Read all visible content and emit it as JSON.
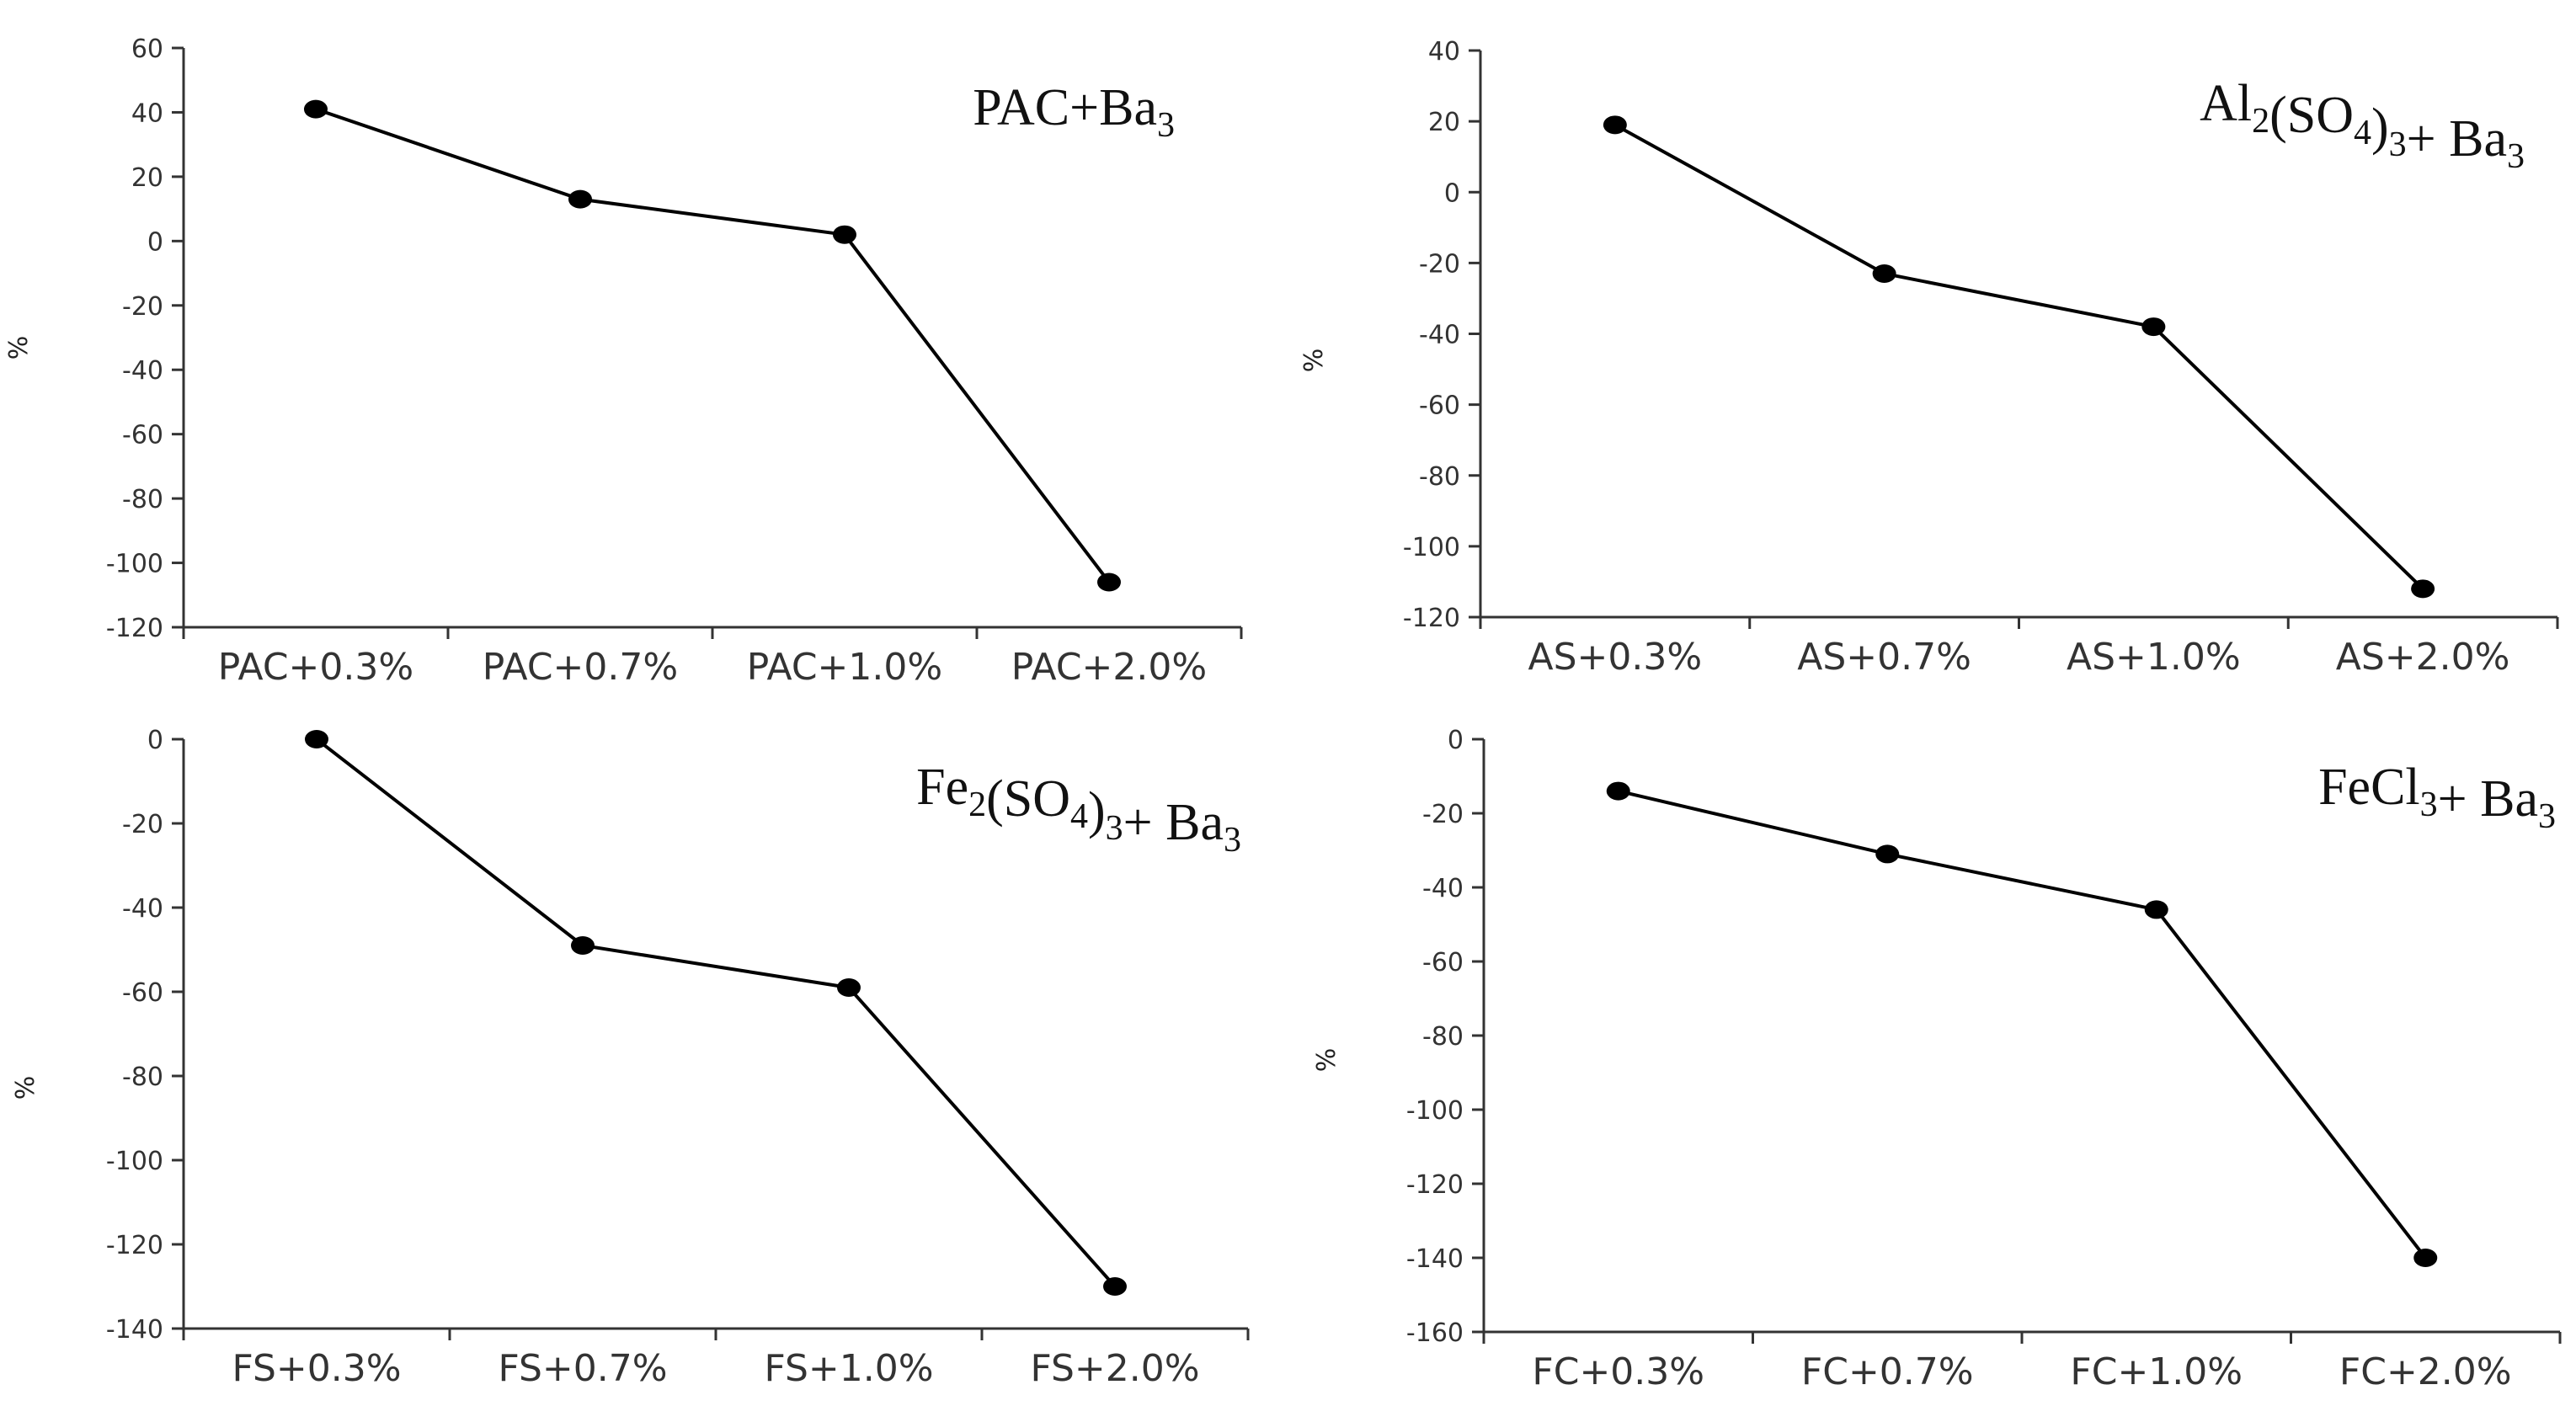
{
  "chart_data": [
    {
      "type": "line",
      "title": "PAC+Ba3",
      "ylabel": "%",
      "xlabel": "",
      "categories": [
        "PAC+0.3%",
        "PAC+0.7%",
        "PAC+1.0%",
        "PAC+2.0%"
      ],
      "values": [
        41,
        13,
        2,
        -106
      ],
      "ylim": [
        -120,
        60
      ],
      "yticks": [
        60,
        40,
        20,
        0,
        -20,
        -40,
        -60,
        -80,
        -100,
        -120
      ],
      "legend": "none",
      "grid": false
    },
    {
      "type": "line",
      "title": "Al2(SO4)3+ Ba3",
      "ylabel": "%",
      "xlabel": "",
      "categories": [
        "AS+0.3%",
        "AS+0.7%",
        "AS+1.0%",
        "AS+2.0%"
      ],
      "values": [
        19,
        -23,
        -38,
        -112
      ],
      "ylim": [
        -120,
        40
      ],
      "yticks": [
        40,
        20,
        0,
        -20,
        -40,
        -60,
        -80,
        -100,
        -120
      ],
      "legend": "none",
      "grid": false
    },
    {
      "type": "line",
      "title": "Fe2(SO4)3+ Ba3",
      "ylabel": "%",
      "xlabel": "",
      "categories": [
        "FS+0.3%",
        "FS+0.7%",
        "FS+1.0%",
        "FS+2.0%"
      ],
      "values": [
        0,
        -49,
        -59,
        -130
      ],
      "ylim": [
        -140,
        0
      ],
      "yticks": [
        0,
        -20,
        -40,
        -60,
        -80,
        -100,
        -120,
        -140
      ],
      "legend": "none",
      "grid": false
    },
    {
      "type": "line",
      "title": "FeCl3+ Ba3",
      "ylabel": "%",
      "xlabel": "",
      "categories": [
        "FC+0.3%",
        "FC+0.7%",
        "FC+1.0%",
        "FC+2.0%"
      ],
      "values": [
        -14,
        -31,
        -46,
        -140
      ],
      "ylim": [
        -160,
        0
      ],
      "yticks": [
        0,
        -20,
        -40,
        -60,
        -80,
        -100,
        -120,
        -140,
        -160
      ],
      "legend": "none",
      "grid": false
    }
  ]
}
